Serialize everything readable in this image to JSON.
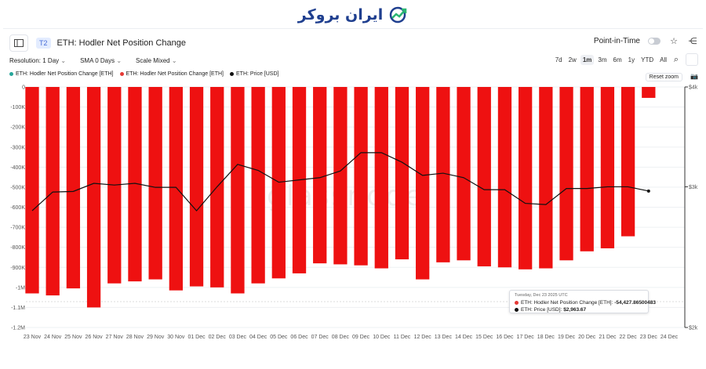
{
  "brand": {
    "text": "ایران بروکر",
    "icon": "trend-arrow-icon"
  },
  "header": {
    "tier": "T2",
    "title": "ETH: Hodler Net Position Change",
    "point_in_time": "Point-in-Time"
  },
  "controls": {
    "resolution": "Resolution: 1 Day",
    "sma": "SMA 0 Days",
    "scale": "Scale Mixed",
    "ranges": [
      "7d",
      "2w",
      "1m",
      "3m",
      "6m",
      "1y",
      "YTD",
      "All"
    ],
    "active_range": "1m",
    "reset_zoom": "Reset zoom"
  },
  "legend": [
    {
      "label": "ETH: Hodler Net Position Change [ETH]",
      "color": "#26a69a"
    },
    {
      "label": "ETH: Hodler Net Position Change [ETH]",
      "color": "#e53935"
    },
    {
      "label": "ETH: Price [USD]",
      "color": "#111111"
    }
  ],
  "watermark": "glassnode",
  "tooltip": {
    "date": "Tuesday, Dec 23 2025 UTC",
    "row1_label": "ETH: Hodler Net Position Change [ETH]:",
    "row1_value": "-54,427.86500483",
    "row2_label": "ETH: Price [USD]:",
    "row2_value": "$2,963.67"
  },
  "chart_data": {
    "type": "bar",
    "categories": [
      "23 Nov",
      "24 Nov",
      "25 Nov",
      "26 Nov",
      "27 Nov",
      "28 Nov",
      "29 Nov",
      "30 Nov",
      "01 Dec",
      "02 Dec",
      "03 Dec",
      "04 Dec",
      "05 Dec",
      "06 Dec",
      "07 Dec",
      "08 Dec",
      "09 Dec",
      "10 Dec",
      "11 Dec",
      "12 Dec",
      "13 Dec",
      "14 Dec",
      "15 Dec",
      "16 Dec",
      "17 Dec",
      "18 Dec",
      "19 Dec",
      "20 Dec",
      "21 Dec",
      "22 Dec",
      "23 Dec",
      "24 Dec"
    ],
    "series": [
      {
        "name": "ETH: Hodler Net Position Change [ETH]",
        "axis": "left",
        "color": "#ee1111",
        "values": [
          -1030000,
          -1040000,
          -1005000,
          -1100000,
          -980000,
          -970000,
          -960000,
          -1015000,
          -995000,
          -1000000,
          -1030000,
          -980000,
          -955000,
          -930000,
          -880000,
          -885000,
          -890000,
          -905000,
          -860000,
          -960000,
          -875000,
          -865000,
          -895000,
          -900000,
          -910000,
          -905000,
          -865000,
          -820000,
          -805000,
          -745000,
          -54427.86500483,
          null
        ]
      },
      {
        "name": "ETH: Price [USD]",
        "axis": "right",
        "type": "line",
        "color": "#111111",
        "scale": "log",
        "values": [
          2800,
          2955,
          2960,
          3030,
          3015,
          3030,
          2995,
          2995,
          2800,
          3000,
          3200,
          3145,
          3040,
          3060,
          3080,
          3140,
          3310,
          3310,
          3220,
          3100,
          3120,
          3080,
          2975,
          2975,
          2860,
          2850,
          2985,
          2985,
          3000,
          3000,
          2963.67,
          null
        ]
      }
    ],
    "ylim_left": [
      -1200000,
      0
    ],
    "left_ticks": [
      "0",
      "-100K",
      "-200K",
      "-300K",
      "-400K",
      "-500K",
      "-600K",
      "-700K",
      "-800K",
      "-900K",
      "-1M",
      "-1.1M",
      "-1.2M"
    ],
    "right_ticks": [
      "$4k",
      "$3k",
      "$2k"
    ],
    "ylim_right": [
      2000,
      4000
    ],
    "grid": true
  }
}
